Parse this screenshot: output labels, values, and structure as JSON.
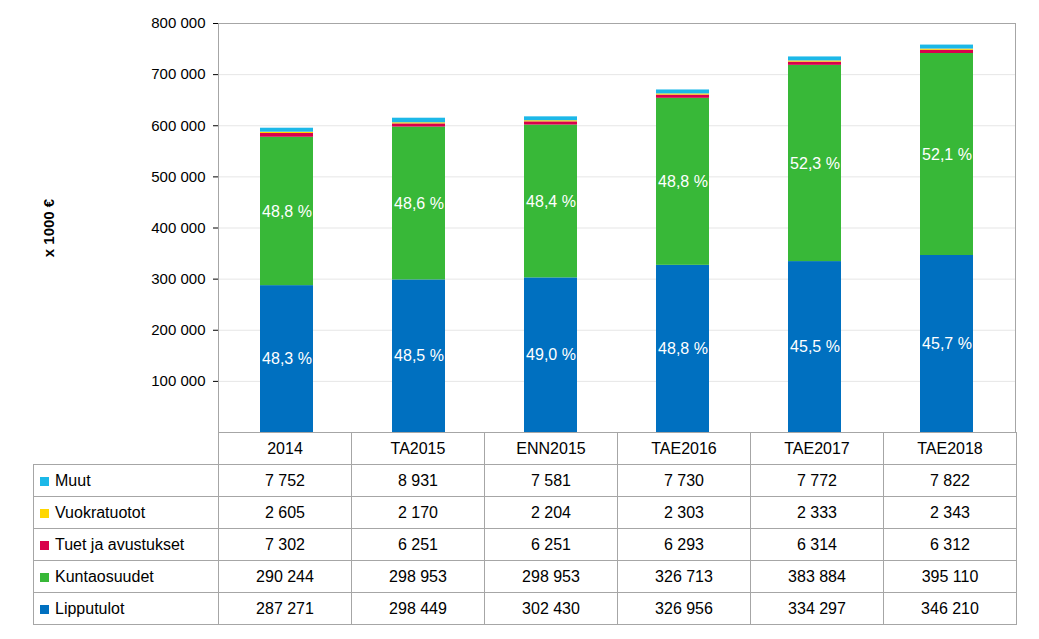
{
  "chart_data": {
    "type": "bar",
    "stacked": true,
    "grid": true,
    "y_label": "x 1000 €",
    "categories": [
      "2014",
      "TA2015",
      "ENN2015",
      "TAE2016",
      "TAE2017",
      "TAE2018"
    ],
    "ylim": [
      0,
      800000
    ],
    "yticks": [
      {
        "value": 100000,
        "label": "100 000"
      },
      {
        "value": 200000,
        "label": "200 000"
      },
      {
        "value": 300000,
        "label": "300 000"
      },
      {
        "value": 400000,
        "label": "400 000"
      },
      {
        "value": 500000,
        "label": "500 000"
      },
      {
        "value": 600000,
        "label": "600 000"
      },
      {
        "value": 700000,
        "label": "700 000"
      },
      {
        "value": 800000,
        "label": "800 000"
      }
    ],
    "series": [
      {
        "name": "Lipputulot",
        "color": "#0070c0",
        "values": [
          287271,
          298449,
          302430,
          326956,
          334297,
          346210
        ],
        "value_labels": [
          "287 271",
          "298 449",
          "302 430",
          "326 956",
          "334 297",
          "346 210"
        ],
        "share_labels": [
          "48,3 %",
          "48,5 %",
          "49,0 %",
          "48,8 %",
          "45,5 %",
          "45,7 %"
        ]
      },
      {
        "name": "Kuntaosuudet",
        "color": "#38b838",
        "values": [
          290244,
          298953,
          298953,
          326713,
          383884,
          395110
        ],
        "value_labels": [
          "290 244",
          "298 953",
          "298 953",
          "326 713",
          "383 884",
          "395 110"
        ],
        "share_labels": [
          "48,8 %",
          "48,6 %",
          "48,4 %",
          "48,8 %",
          "52,3 %",
          "52,1 %"
        ]
      },
      {
        "name": "Tuet ja avustukset",
        "color": "#d9004c",
        "values": [
          7302,
          6251,
          6251,
          6293,
          6314,
          6312
        ],
        "value_labels": [
          "7 302",
          "6 251",
          "6 251",
          "6 293",
          "6 314",
          "6 312"
        ]
      },
      {
        "name": "Vuokratuotot",
        "color": "#ffd700",
        "values": [
          2605,
          2170,
          2204,
          2303,
          2333,
          2343
        ],
        "value_labels": [
          "2 605",
          "2 170",
          "2 204",
          "2 303",
          "2 333",
          "2 343"
        ]
      },
      {
        "name": "Muut",
        "color": "#1cb8e8",
        "values": [
          7752,
          8931,
          7581,
          7730,
          7772,
          7822
        ],
        "value_labels": [
          "7 752",
          "8 931",
          "7 581",
          "7 730",
          "7 772",
          "7 822"
        ]
      }
    ]
  }
}
